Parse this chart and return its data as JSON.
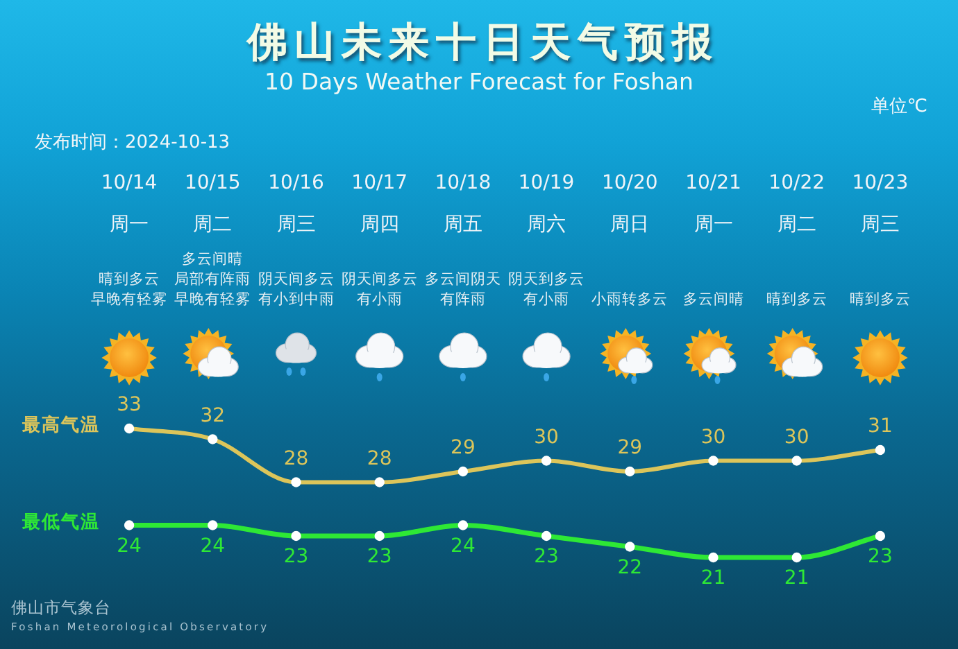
{
  "chart_data": {
    "type": "line",
    "title": "佛山未来十日天气预报",
    "subtitle": "10 Days Weather Forecast for Foshan",
    "ylabel": "单位℃",
    "categories": [
      "10/14",
      "10/15",
      "10/16",
      "10/17",
      "10/18",
      "10/19",
      "10/20",
      "10/21",
      "10/22",
      "10/23"
    ],
    "series": [
      {
        "name": "最高气温",
        "color": "#dcc55a",
        "values": [
          33,
          32,
          28,
          28,
          29,
          30,
          29,
          30,
          30,
          31
        ]
      },
      {
        "name": "最低气温",
        "color": "#2ee835",
        "values": [
          24,
          24,
          23,
          23,
          24,
          23,
          22,
          21,
          21,
          23
        ]
      }
    ],
    "tick_labels": "x",
    "marker": "circle",
    "data_labels": true,
    "annotations": [
      "发布时间：2024-10-13",
      "周一",
      "周二",
      "周三",
      "周四",
      "周五",
      "周六",
      "周日",
      "周一",
      "周二",
      "周三",
      "晴到多云",
      "早晚有轻雾",
      "多云间晴",
      "局部有阵雨",
      "早晚有轻雾",
      "阴天间多云",
      "有小到中雨",
      "阴天间多云",
      "有小雨",
      "多云间阴天",
      "有阵雨",
      "阴天到多云",
      "有小雨",
      "小雨转多云",
      "多云间晴",
      "晴到多云",
      "晴到多云",
      "佛山市气象台",
      "Foshan Meteorological Observatory"
    ]
  }
}
